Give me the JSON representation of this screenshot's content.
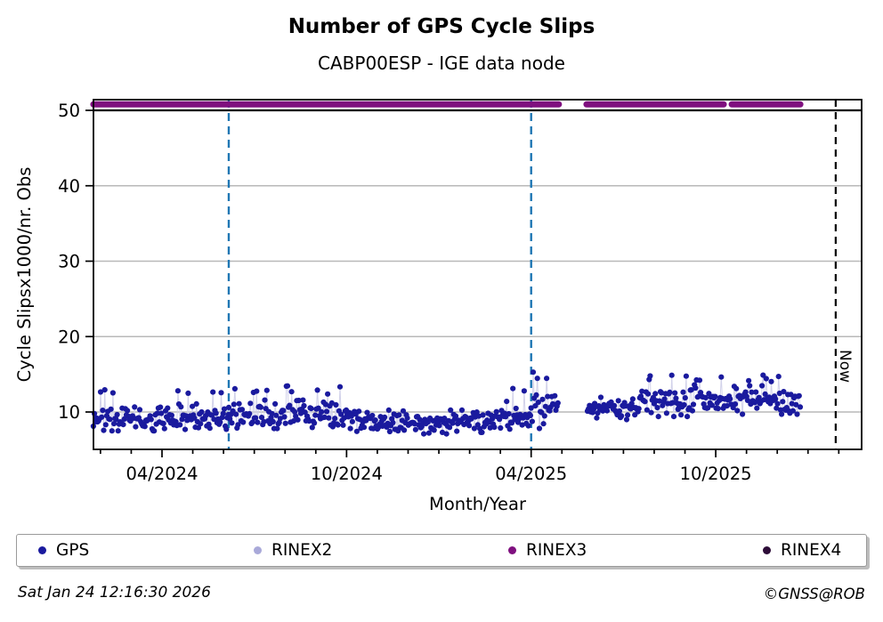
{
  "header": {
    "title": "Number of GPS Cycle Slips",
    "subtitle": "CABP00ESP - IGE data node"
  },
  "chart_data": {
    "type": "scatter",
    "title": "Number of GPS Cycle Slips",
    "subtitle": "CABP00ESP - IGE data node",
    "xlabel": "Month/Year",
    "ylabel": "Cycle Slipsx1000/nr. Obs",
    "x_unit": "months since 2024-01-01",
    "xlim_months": [
      0.77,
      25.74
    ],
    "ylim": [
      5.0,
      51.4
    ],
    "yticks": [
      10,
      20,
      30,
      40,
      50
    ],
    "xticks": [
      {
        "m": 3,
        "label": "04/2024"
      },
      {
        "m": 9,
        "label": "10/2024"
      },
      {
        "m": 15,
        "label": "04/2025"
      },
      {
        "m": 21,
        "label": "10/2025"
      }
    ],
    "minor_xticks": "monthly from m=1 to m=25",
    "grid": "horizontal gray lines at 10,20,30,40",
    "hline": {
      "y": 50,
      "color": "#000000",
      "note": "solid black reference line across full width"
    },
    "vlines": [
      {
        "m": 5.17,
        "color": "#1f77b4",
        "style": "dashed"
      },
      {
        "m": 15.0,
        "color": "#1f77b4",
        "style": "dashed"
      }
    ],
    "now_line": {
      "m": 24.9,
      "label": "Now",
      "color": "#000000",
      "style": "dashed"
    },
    "series": [
      {
        "name": "GPS",
        "color": "#1a1a9e",
        "marker": "dot",
        "connector_color": "#d2d2ea",
        "value_summary": "daily cycle-slip ratio mostly 7-13 (mean ~9) Feb 2024 - Mar 2025, spikes to ~15.5 in Apr 2025, gap mid-Apr to mid-May 2025, then mean rises ~10.5 to ~12 (peaks ~15.5) through Dec 2025"
      },
      {
        "name": "RINEX2",
        "color": "#a9a9d9",
        "points": "none visible"
      },
      {
        "name": "RINEX3",
        "color": "#7f107f",
        "value": 50.8,
        "bands_months": [
          [
            0.77,
            15.9
          ],
          [
            16.8,
            21.26
          ],
          [
            21.52,
            23.75
          ]
        ]
      },
      {
        "name": "RINEX4",
        "color": "#2d0c38",
        "points": "none visible"
      }
    ],
    "scatter_spec": {
      "seed": 42,
      "step_months": 0.0335,
      "clamp": [
        6.3,
        15.6
      ],
      "segments_m0_m1_mean_sd_spikeprob_spikemax": [
        [
          0.77,
          5.17,
          9.2,
          0.85,
          0.04,
          13.0
        ],
        [
          5.17,
          9.3,
          9.6,
          0.9,
          0.05,
          13.5
        ],
        [
          9.3,
          13.2,
          8.6,
          0.75,
          0.03,
          12.8
        ],
        [
          13.2,
          15.0,
          9.3,
          1.0,
          0.06,
          13.8
        ],
        [
          15.0,
          15.88,
          10.4,
          1.4,
          0.12,
          15.5
        ],
        [
          16.83,
          18.5,
          10.4,
          0.7,
          0.04,
          13.0
        ],
        [
          18.5,
          21.3,
          11.4,
          1.0,
          0.07,
          15.5
        ],
        [
          21.3,
          23.75,
          11.5,
          0.9,
          0.04,
          15.0
        ]
      ]
    }
  },
  "legend": {
    "items": [
      {
        "label": "GPS",
        "color": "#1a1a9e"
      },
      {
        "label": "RINEX2",
        "color": "#a9a9d9"
      },
      {
        "label": "RINEX3",
        "color": "#7f107f"
      },
      {
        "label": "RINEX4",
        "color": "#2d0c38"
      }
    ]
  },
  "footer": {
    "timestamp": "Sat Jan 24 12:16:30 2026",
    "credit": "©GNSS@ROB"
  }
}
